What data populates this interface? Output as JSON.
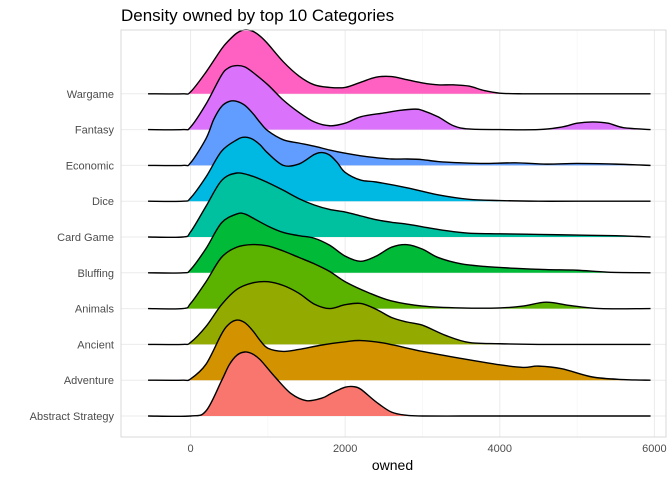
{
  "chart_data": {
    "type": "ridgeline",
    "title": "Density owned by top 10 Categories",
    "xlabel": "owned",
    "ylabel": "",
    "xlim": [
      -900,
      6150
    ],
    "x_ticks": [
      0,
      2000,
      4000,
      6000
    ],
    "x_tick_labels": [
      "0",
      "2000",
      "4000",
      "6000"
    ],
    "grid": true,
    "legend": "none",
    "x_range": [
      -550,
      5950
    ],
    "series": [
      {
        "name": "Abstract Strategy",
        "color": "#F8766D",
        "x": [
          -550,
          0,
          200,
          400,
          500,
          600,
          700,
          800,
          900,
          1100,
          1300,
          1500,
          1700,
          1800,
          1900,
          2000,
          2100,
          2200,
          2400,
          2600,
          2800,
          3000,
          3500,
          4000,
          4500,
          5000,
          5500,
          5950
        ],
        "y": [
          0,
          0,
          0.08,
          0.55,
          0.8,
          0.95,
          1.0,
          0.97,
          0.88,
          0.6,
          0.35,
          0.24,
          0.28,
          0.34,
          0.4,
          0.45,
          0.46,
          0.42,
          0.22,
          0.06,
          0.01,
          0,
          0,
          0,
          0,
          0,
          0,
          0
        ]
      },
      {
        "name": "Adventure",
        "color": "#D39200",
        "x": [
          -550,
          -100,
          0,
          200,
          400,
          500,
          600,
          700,
          800,
          900,
          1000,
          1200,
          1400,
          1700,
          2000,
          2200,
          2500,
          3000,
          3500,
          4000,
          4300,
          4500,
          4800,
          5200,
          5600,
          5950
        ],
        "y": [
          0,
          0,
          0.02,
          0.25,
          0.72,
          0.88,
          0.94,
          0.9,
          0.78,
          0.62,
          0.5,
          0.45,
          0.48,
          0.55,
          0.6,
          0.62,
          0.58,
          0.45,
          0.34,
          0.24,
          0.2,
          0.22,
          0.18,
          0.05,
          0.01,
          0
        ]
      },
      {
        "name": "Ancient",
        "color": "#93AA00",
        "x": [
          -550,
          -100,
          0,
          200,
          400,
          600,
          800,
          1000,
          1200,
          1400,
          1600,
          1800,
          2000,
          2200,
          2400,
          2600,
          2800,
          3000,
          3300,
          3600,
          4000,
          4500,
          5000,
          5950
        ],
        "y": [
          0,
          0,
          0.03,
          0.28,
          0.62,
          0.86,
          0.96,
          0.98,
          0.92,
          0.8,
          0.63,
          0.56,
          0.62,
          0.64,
          0.55,
          0.42,
          0.35,
          0.3,
          0.14,
          0.03,
          0.01,
          0,
          0,
          0
        ]
      },
      {
        "name": "Animals",
        "color": "#5BB300",
        "x": [
          -550,
          -100,
          0,
          200,
          400,
          600,
          800,
          1000,
          1200,
          1400,
          1600,
          1800,
          2000,
          2300,
          2600,
          3000,
          3500,
          4000,
          4300,
          4600,
          4900,
          5300,
          5950
        ],
        "y": [
          0,
          0,
          0.08,
          0.42,
          0.8,
          0.96,
          1.0,
          0.98,
          0.9,
          0.8,
          0.7,
          0.58,
          0.42,
          0.25,
          0.12,
          0.04,
          0.01,
          0.01,
          0.04,
          0.1,
          0.05,
          0,
          0
        ]
      },
      {
        "name": "Bluffing",
        "color": "#00BA38",
        "x": [
          -550,
          -100,
          0,
          200,
          400,
          600,
          700,
          800,
          1000,
          1200,
          1400,
          1600,
          1800,
          2000,
          2200,
          2400,
          2600,
          2800,
          3000,
          3200,
          3500,
          3800,
          4200,
          4600,
          5000,
          5400,
          5950
        ],
        "y": [
          0,
          0,
          0.05,
          0.38,
          0.78,
          0.92,
          0.92,
          0.86,
          0.73,
          0.63,
          0.58,
          0.54,
          0.43,
          0.26,
          0.18,
          0.26,
          0.4,
          0.44,
          0.37,
          0.24,
          0.14,
          0.1,
          0.07,
          0.05,
          0.04,
          0.01,
          0
        ]
      },
      {
        "name": "Card Game",
        "color": "#00C19F",
        "x": [
          -550,
          -100,
          0,
          200,
          400,
          600,
          800,
          1000,
          1200,
          1400,
          1600,
          1800,
          2000,
          2200,
          2400,
          2600,
          2800,
          3000,
          3300,
          3600,
          4000,
          4500,
          5000,
          5500,
          5950
        ],
        "y": [
          0,
          0,
          0.08,
          0.48,
          0.88,
          1.0,
          0.95,
          0.85,
          0.73,
          0.6,
          0.5,
          0.43,
          0.39,
          0.33,
          0.27,
          0.23,
          0.2,
          0.16,
          0.1,
          0.06,
          0.05,
          0.04,
          0.03,
          0.02,
          0
        ]
      },
      {
        "name": "Dice",
        "color": "#00B9E3",
        "x": [
          -550,
          -100,
          0,
          200,
          400,
          600,
          700,
          800,
          900,
          1000,
          1200,
          1400,
          1600,
          1700,
          1800,
          1900,
          2000,
          2200,
          2400,
          2800,
          3200,
          3600,
          4000,
          4500,
          5000,
          5950
        ],
        "y": [
          0,
          0,
          0.05,
          0.38,
          0.78,
          0.96,
          1.0,
          0.97,
          0.88,
          0.75,
          0.56,
          0.58,
          0.73,
          0.76,
          0.72,
          0.6,
          0.45,
          0.33,
          0.3,
          0.21,
          0.1,
          0.03,
          0.01,
          0,
          0,
          0
        ]
      },
      {
        "name": "Economic",
        "color": "#619CFF",
        "x": [
          -550,
          -100,
          0,
          200,
          300,
          400,
          500,
          600,
          700,
          800,
          900,
          1000,
          1200,
          1400,
          1600,
          1800,
          2000,
          2200,
          2400,
          2600,
          2800,
          3000,
          3200,
          3500,
          3800,
          4200,
          4600,
          5000,
          5500,
          5950
        ],
        "y": [
          0,
          0,
          0.04,
          0.42,
          0.72,
          0.92,
          1.0,
          1.0,
          0.94,
          0.82,
          0.67,
          0.54,
          0.4,
          0.35,
          0.3,
          0.24,
          0.19,
          0.15,
          0.12,
          0.1,
          0.1,
          0.09,
          0.06,
          0.04,
          0.03,
          0.04,
          0.02,
          0.03,
          0.02,
          0
        ]
      },
      {
        "name": "Fantasy",
        "color": "#DB72FB",
        "x": [
          -550,
          -100,
          0,
          200,
          400,
          500,
          600,
          700,
          800,
          1000,
          1200,
          1400,
          1600,
          1800,
          2000,
          2200,
          2500,
          2700,
          2900,
          3000,
          3200,
          3400,
          3600,
          4000,
          4500,
          4800,
          5000,
          5200,
          5400,
          5600,
          5950
        ],
        "y": [
          0,
          0,
          0.04,
          0.4,
          0.85,
          0.97,
          1.0,
          0.98,
          0.9,
          0.7,
          0.46,
          0.27,
          0.12,
          0.06,
          0.1,
          0.2,
          0.26,
          0.3,
          0.32,
          0.3,
          0.2,
          0.06,
          0.01,
          0,
          0,
          0.04,
          0.1,
          0.12,
          0.1,
          0.03,
          0
        ]
      },
      {
        "name": "Wargame",
        "color": "#FF61C3",
        "x": [
          -550,
          -100,
          0,
          200,
          400,
          500,
          600,
          700,
          800,
          900,
          1000,
          1200,
          1400,
          1600,
          1800,
          2000,
          2200,
          2400,
          2600,
          2800,
          3000,
          3200,
          3400,
          3600,
          3800,
          4000,
          4300,
          4600,
          5000,
          5950
        ],
        "y": [
          0,
          0,
          0.03,
          0.34,
          0.7,
          0.84,
          0.95,
          1.0,
          0.98,
          0.9,
          0.78,
          0.5,
          0.28,
          0.14,
          0.1,
          0.1,
          0.18,
          0.26,
          0.27,
          0.22,
          0.17,
          0.14,
          0.14,
          0.12,
          0.05,
          0.01,
          0,
          0,
          0,
          0
        ]
      }
    ]
  }
}
